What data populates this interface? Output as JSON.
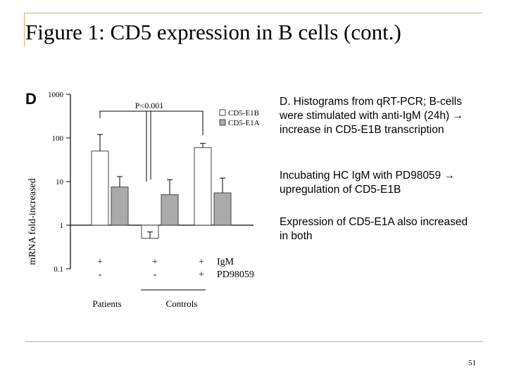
{
  "slide": {
    "title": "Figure 1: CD5 expression in B cells (cont.)",
    "page_number": "51",
    "accent_color": "#c9b36a",
    "paragraphs": [
      "D. Histograms from qRT-PCR; B-cells were stimulated with anti-IgM (24h) → increase in CD5-E1B transcription",
      "Incubating HC IgM with PD98059 → upregulation of CD5-E1B",
      "Expression of CD5-E1A also increased in both"
    ]
  },
  "chart_data": {
    "type": "bar",
    "panel_label": "D",
    "ylabel": "mRNA fold-increased",
    "yscale": "log",
    "ylim": [
      0.1,
      1000
    ],
    "yticks": [
      "0.1",
      "1",
      "10",
      "100",
      "1000"
    ],
    "significance": "P<0.001",
    "groups": [
      "1",
      "2",
      "3"
    ],
    "series": [
      {
        "name": "CD5-E1B",
        "color": "#ffffff",
        "values": [
          50,
          0.5,
          60
        ],
        "err_upper": [
          120,
          0.7,
          75
        ]
      },
      {
        "name": "CD5-E1A",
        "color": "#aaaaaa",
        "values": [
          7.5,
          5,
          5.5
        ],
        "err_upper": [
          13,
          11,
          12
        ]
      }
    ],
    "condition_rows": [
      {
        "label": "IgM",
        "values": [
          "+",
          "+",
          "+"
        ]
      },
      {
        "label": "PD98059",
        "values": [
          "-",
          "-",
          "+"
        ]
      }
    ],
    "group_labels": [
      {
        "label": "Patients",
        "groups": [
          0
        ]
      },
      {
        "label": "Controls",
        "groups": [
          1,
          2
        ]
      }
    ]
  }
}
